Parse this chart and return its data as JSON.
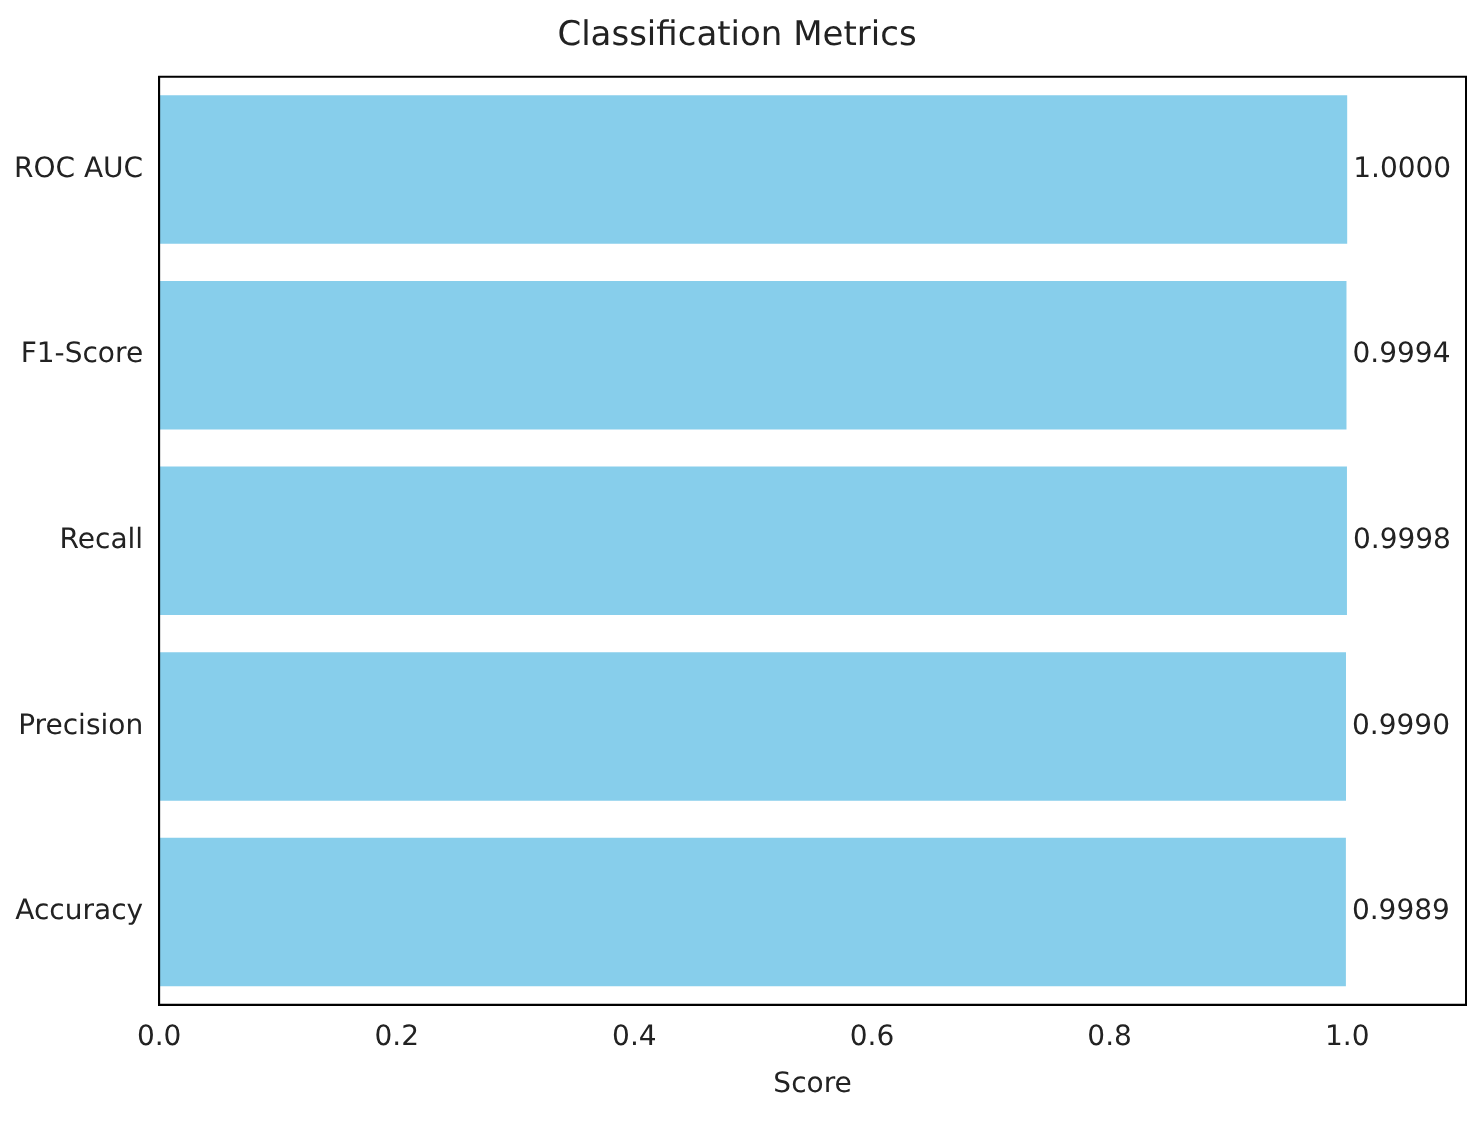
{
  "chart_data": {
    "type": "bar",
    "orientation": "horizontal",
    "title": "Classification Metrics",
    "xlabel": "Score",
    "categories": [
      "ROC AUC",
      "F1-Score",
      "Recall",
      "Precision",
      "Accuracy"
    ],
    "values": [
      1.0,
      0.9994,
      0.9998,
      0.999,
      0.9989
    ],
    "value_labels": [
      "1.0000",
      "0.9994",
      "0.9998",
      "0.9990",
      "0.9989"
    ],
    "color": "#87ceeb",
    "xlim": [
      0,
      1.1
    ],
    "xticks": [
      {
        "value": 0,
        "label": "0.0"
      },
      {
        "value": 0.2,
        "label": "0.2"
      },
      {
        "value": 0.4,
        "label": "0.4"
      },
      {
        "value": 0.6,
        "label": "0.6"
      },
      {
        "value": 0.8,
        "label": "0.8"
      },
      {
        "value": 1,
        "label": "1.0"
      }
    ],
    "grid": false,
    "legend": false
  }
}
